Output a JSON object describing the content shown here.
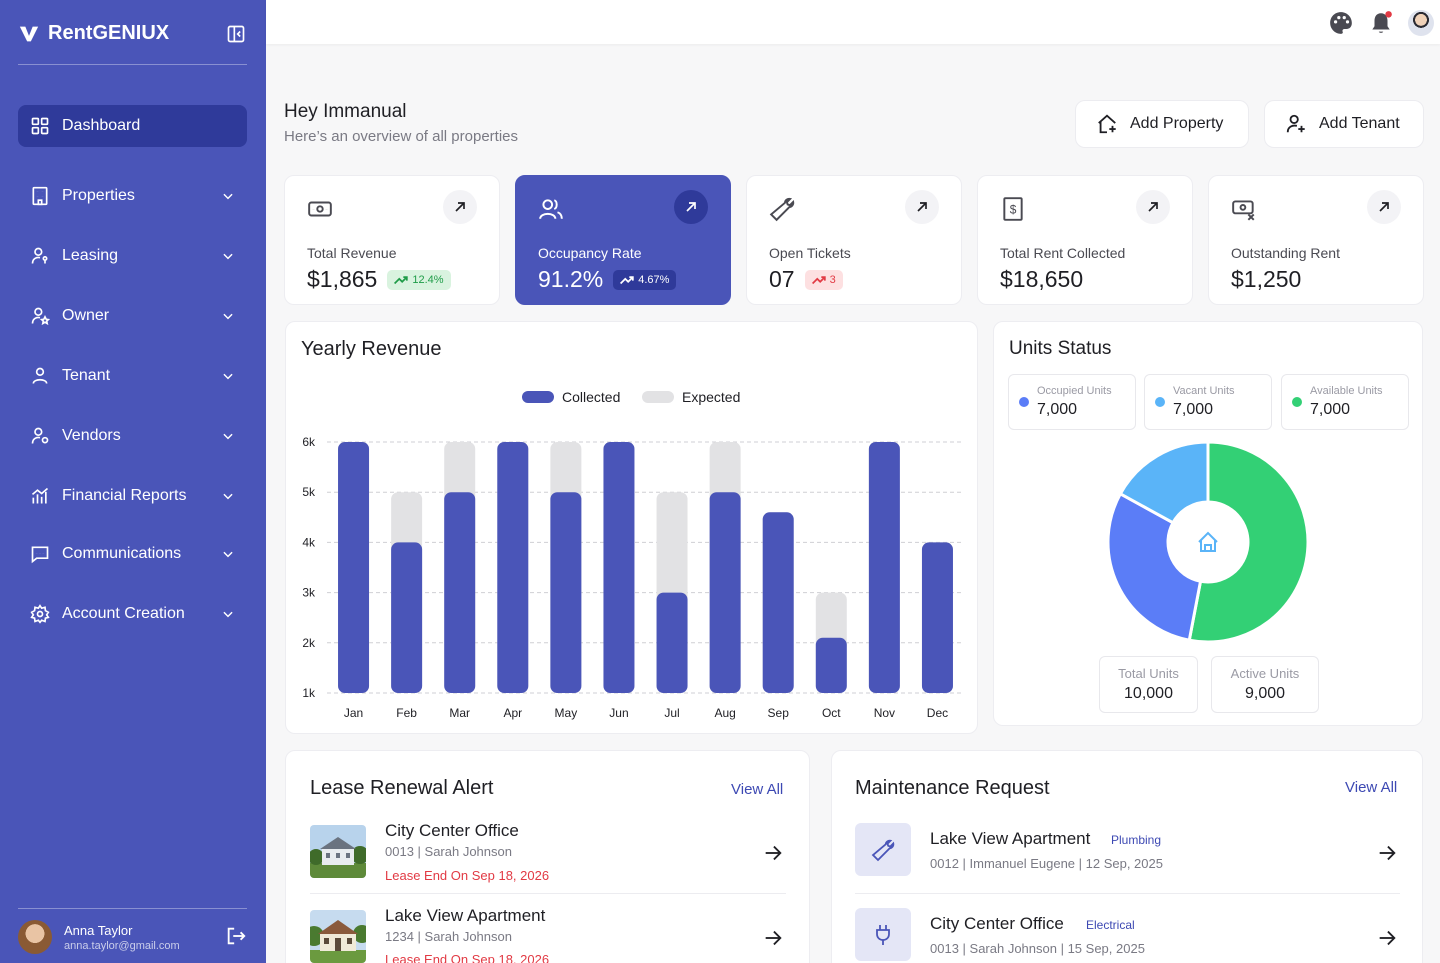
{
  "app": {
    "name": "RentGENIUX"
  },
  "sidebar": {
    "items": [
      {
        "label": "Dashboard",
        "icon": "grid-icon"
      },
      {
        "label": "Properties",
        "icon": "building-icon"
      },
      {
        "label": "Leasing",
        "icon": "user-key-icon"
      },
      {
        "label": "Owner",
        "icon": "user-star-icon"
      },
      {
        "label": "Tenant",
        "icon": "user-icon"
      },
      {
        "label": "Vendors",
        "icon": "user-gear-icon"
      },
      {
        "label": "Financial Reports",
        "icon": "bar-chart-icon"
      },
      {
        "label": "Communications",
        "icon": "chat-icon"
      },
      {
        "label": "Account Creation",
        "icon": "gear-icon"
      }
    ],
    "user": {
      "name": "Anna Taylor",
      "email": "anna.taylor@gmail.com"
    }
  },
  "header": {
    "greeting": "Hey Immanual",
    "subtitle": "Here’s an overview of all properties",
    "add_property": "Add Property",
    "add_tenant": "Add Tenant"
  },
  "stats": [
    {
      "label": "Total Revenue",
      "value": "$1,865",
      "badge": "12.4%",
      "badge_type": "up"
    },
    {
      "label": "Occupancy Rate",
      "value": "91.2%",
      "badge": "4.67%",
      "badge_type": "up"
    },
    {
      "label": "Open Tickets",
      "value": "07",
      "badge": "3",
      "badge_type": "alert"
    },
    {
      "label": "Total Rent Collected",
      "value": "$18,650"
    },
    {
      "label": "Outstanding Rent",
      "value": "$1,250"
    }
  ],
  "colors": {
    "accent": "#4a55b8",
    "expected": "#e2e2e4",
    "green": "#33d075",
    "blue": "#5b7df7",
    "light_blue": "#5ab4f8"
  },
  "chart_data": {
    "type": "bar",
    "title": "Yearly Revenue",
    "categories": [
      "Jan",
      "Feb",
      "Mar",
      "Apr",
      "May",
      "Jun",
      "Jul",
      "Aug",
      "Sep",
      "Oct",
      "Nov",
      "Dec"
    ],
    "series": [
      {
        "name": "Collected",
        "values": [
          6000,
          4000,
          5000,
          6000,
          5000,
          6000,
          3000,
          5000,
          4600,
          2100,
          6000,
          4000
        ]
      },
      {
        "name": "Expected",
        "values": [
          6000,
          5000,
          6000,
          6000,
          6000,
          6000,
          5000,
          6000,
          4600,
          3000,
          6000,
          4000
        ]
      }
    ],
    "ylim": [
      1000,
      6000
    ],
    "yticks": [
      "1k",
      "2k",
      "3k",
      "4k",
      "5k",
      "6k"
    ],
    "grid": true,
    "legend": "top-center"
  },
  "units_status": {
    "title": "Units Status",
    "boxes": [
      {
        "label": "Occupied Units",
        "value": "7,000"
      },
      {
        "label": "Vacant Units",
        "value": "7,000"
      },
      {
        "label": "Available Units",
        "value": "7,000"
      }
    ],
    "donut": [
      {
        "name": "Occupied Units",
        "value": 0.53
      },
      {
        "name": "Vacant Units",
        "value": 0.3
      },
      {
        "name": "Available Units",
        "value": 0.17
      }
    ],
    "total_label": "Total Units",
    "total_value": "10,000",
    "active_label": "Active Units",
    "active_value": "9,000"
  },
  "lease": {
    "title": "Lease Renewal Alert",
    "view_all": "View All",
    "rows": [
      {
        "title": "City Center Office",
        "sub": "0013 | Sarah Johnson",
        "alert": "Lease End On Sep 18, 2026"
      },
      {
        "title": "Lake View Apartment",
        "sub": "1234 | Sarah Johnson",
        "alert": "Lease End On Sep 18, 2026"
      }
    ]
  },
  "maintenance": {
    "title": "Maintenance Request",
    "view_all": "View All",
    "rows": [
      {
        "title": "Lake View Apartment",
        "tag": "Plumbing",
        "sub": "0012 | Immanuel Eugene | 12 Sep, 2025"
      },
      {
        "title": "City Center Office",
        "tag": "Electrical",
        "sub": "0013 | Sarah Johnson | 15 Sep, 2025"
      }
    ]
  }
}
